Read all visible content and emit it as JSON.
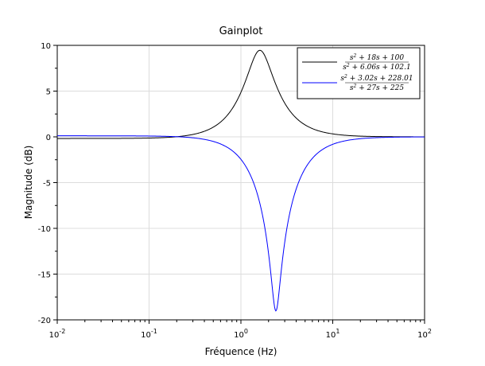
{
  "chart_data": {
    "type": "line",
    "title": "Gainplot",
    "xlabel": "Fréquence (Hz)",
    "ylabel": "Magnitude (dB)",
    "xscale": "log",
    "xlim": [
      0.01,
      100
    ],
    "ylim": [
      -20,
      10
    ],
    "grid": true,
    "legend_position": "top-right",
    "x_ticks": [
      {
        "value": 0.01,
        "base": "10",
        "exp": "-2"
      },
      {
        "value": 0.1,
        "base": "10",
        "exp": "-1"
      },
      {
        "value": 1,
        "base": "10",
        "exp": "0"
      },
      {
        "value": 10,
        "base": "10",
        "exp": "1"
      },
      {
        "value": 100,
        "base": "10",
        "exp": "2"
      }
    ],
    "y_ticks": [
      "10",
      "5",
      "0",
      "-5",
      "-10",
      "-15",
      "-20"
    ],
    "series": [
      {
        "name": "(s^2 + 18s + 100) / (s^2 + 6.06s + 102.1)",
        "legend": {
          "num": [
            "s",
            "2",
            " + 18s + 100"
          ],
          "den": [
            "s",
            "2",
            " + 6.06s + 102.1"
          ]
        },
        "color": "#000000",
        "transfer_function": {
          "num": [
            1,
            18,
            100
          ],
          "den": [
            1,
            6.06,
            102.1
          ]
        },
        "x": [
          0.01,
          0.1,
          0.2,
          0.5,
          1.0,
          1.3,
          1.6,
          1.8,
          2.0,
          2.5,
          3.0,
          5.0,
          10,
          30,
          100
        ],
        "y": [
          -0.18,
          -0.1,
          0.12,
          1.07,
          4.04,
          7.1,
          9.45,
          9.0,
          7.76,
          4.61,
          2.87,
          0.99,
          0.28,
          0.03,
          0.0
        ]
      },
      {
        "name": "(s^2 + 3.02s + 228.01) / (s^2 + 27s + 225)",
        "legend": {
          "num": [
            "s",
            "2",
            " + 3.02s + 228.01"
          ],
          "den": [
            "s",
            "2",
            " + 27s + 225"
          ]
        },
        "color": "#0000ff",
        "transfer_function": {
          "num": [
            1,
            3.02,
            228.01
          ],
          "den": [
            1,
            27,
            225
          ]
        },
        "x": [
          0.01,
          0.1,
          0.2,
          0.5,
          1.0,
          1.5,
          2.0,
          2.2,
          2.4,
          2.6,
          3.0,
          4.0,
          10,
          30,
          100
        ],
        "y": [
          0.1,
          0.07,
          0.0,
          -0.44,
          -2.16,
          -5.5,
          -11.6,
          -15.3,
          -19.1,
          -15.5,
          -9.7,
          -4.3,
          -0.66,
          -0.08,
          0.0
        ]
      }
    ]
  }
}
